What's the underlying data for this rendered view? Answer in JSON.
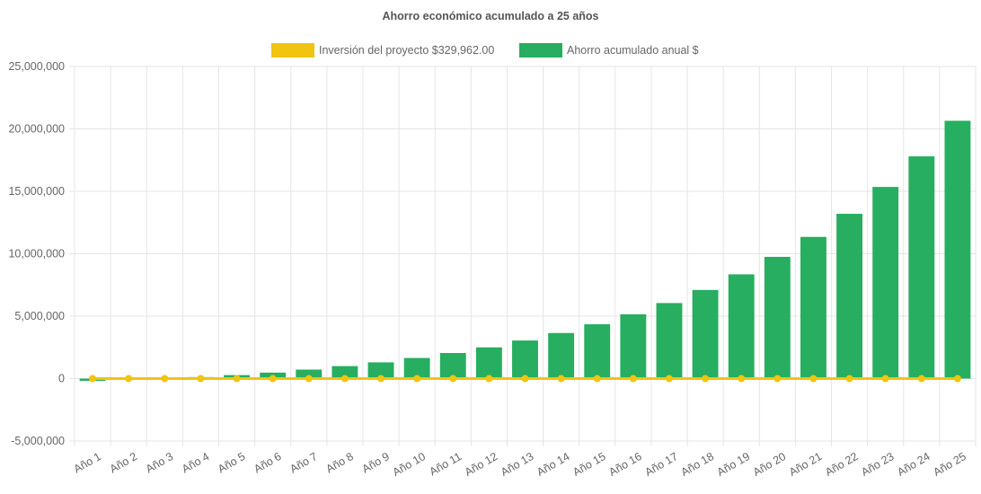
{
  "chart_data": {
    "type": "bar",
    "title": "Ahorro económico acumulado a 25 años",
    "categories": [
      "Año 1",
      "Año 2",
      "Año 3",
      "Año 4",
      "Año 5",
      "Año 6",
      "Año 7",
      "Año 8",
      "Año 9",
      "Año 10",
      "Año 11",
      "Año 12",
      "Año 13",
      "Año 14",
      "Año 15",
      "Año 16",
      "Año 17",
      "Año 18",
      "Año 19",
      "Año 20",
      "Año 21",
      "Año 22",
      "Año 23",
      "Año 24",
      "Año 25"
    ],
    "series": [
      {
        "name": "Inversión del proyecto $329,962.00",
        "type": "line",
        "color": "#f1c40f",
        "values": [
          0,
          0,
          0,
          0,
          0,
          0,
          0,
          0,
          0,
          0,
          0,
          0,
          0,
          0,
          0,
          0,
          0,
          0,
          0,
          0,
          0,
          0,
          0,
          0,
          0
        ]
      },
      {
        "name": "Ahorro acumulado anual $",
        "type": "bar",
        "color": "#27ae60",
        "values": [
          -180000,
          -20000,
          20000,
          120000,
          280000,
          480000,
          720000,
          1000000,
          1300000,
          1650000,
          2050000,
          2500000,
          3050000,
          3650000,
          4350000,
          5150000,
          6050000,
          7100000,
          8350000,
          9750000,
          11350000,
          13200000,
          15350000,
          17800000,
          20650000
        ]
      }
    ],
    "yticks": [
      -5000000,
      0,
      5000000,
      10000000,
      15000000,
      20000000,
      25000000
    ],
    "ytick_labels": [
      "-5,000,000",
      "0",
      "5,000,000",
      "10,000,000",
      "15,000,000",
      "20,000,000",
      "25,000,000"
    ],
    "ylim": [
      -5000000,
      25000000
    ],
    "grid": true,
    "legend_position": "top"
  }
}
